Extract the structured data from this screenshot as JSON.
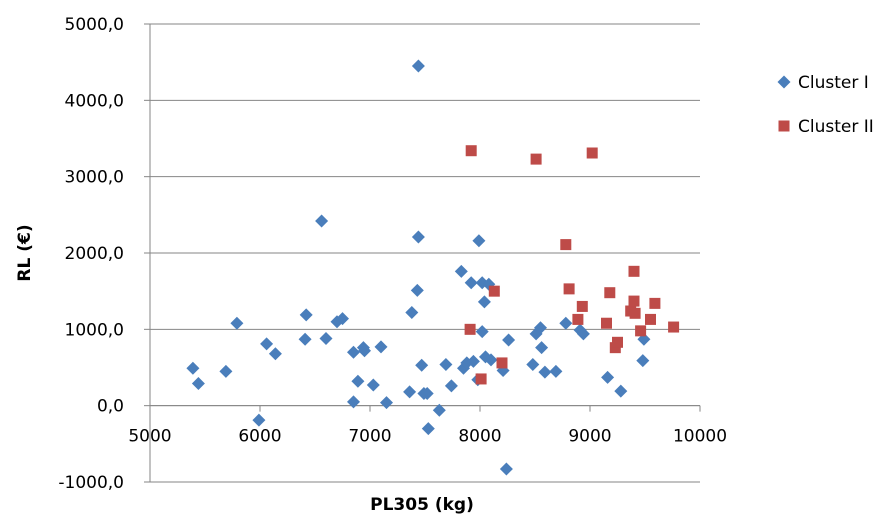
{
  "chart_data": {
    "type": "scatter",
    "xlabel": "PL305 (kg)",
    "ylabel": "RL (€)",
    "xlim": [
      5000,
      10000
    ],
    "ylim": [
      -1000,
      5000
    ],
    "x_ticks": [
      "5000",
      "6000",
      "7000",
      "8000",
      "9000",
      "10000"
    ],
    "y_ticks": [
      "-1000,0",
      "0,0",
      "1000,0",
      "2000,0",
      "3000,0",
      "4000,0",
      "5000,0"
    ],
    "grid": "horizontal",
    "legend_position": "right",
    "series": [
      {
        "name": "Cluster I",
        "color": "#4a7ebb",
        "marker": "diamond",
        "points": [
          [
            5390,
            490
          ],
          [
            5440,
            290
          ],
          [
            5690,
            450
          ],
          [
            5790,
            1080
          ],
          [
            5990,
            -190
          ],
          [
            6060,
            810
          ],
          [
            6140,
            680
          ],
          [
            6410,
            870
          ],
          [
            6420,
            1190
          ],
          [
            6560,
            2420
          ],
          [
            6600,
            880
          ],
          [
            6700,
            1100
          ],
          [
            6750,
            1140
          ],
          [
            6850,
            700
          ],
          [
            6850,
            50
          ],
          [
            6890,
            320
          ],
          [
            6940,
            760
          ],
          [
            6950,
            720
          ],
          [
            7030,
            270
          ],
          [
            7100,
            770
          ],
          [
            7150,
            40
          ],
          [
            7360,
            180
          ],
          [
            7380,
            1220
          ],
          [
            7430,
            1510
          ],
          [
            7440,
            2210
          ],
          [
            7440,
            4450
          ],
          [
            7470,
            530
          ],
          [
            7490,
            160
          ],
          [
            7520,
            160
          ],
          [
            7530,
            -300
          ],
          [
            7630,
            -60
          ],
          [
            7690,
            540
          ],
          [
            7740,
            260
          ],
          [
            7830,
            1760
          ],
          [
            7850,
            490
          ],
          [
            7880,
            560
          ],
          [
            7920,
            1610
          ],
          [
            7940,
            580
          ],
          [
            7980,
            340
          ],
          [
            7990,
            2160
          ],
          [
            8020,
            970
          ],
          [
            8020,
            1610
          ],
          [
            8040,
            1360
          ],
          [
            8050,
            640
          ],
          [
            8080,
            1590
          ],
          [
            8100,
            600
          ],
          [
            8210,
            460
          ],
          [
            8240,
            -830
          ],
          [
            8260,
            860
          ],
          [
            8480,
            540
          ],
          [
            8510,
            940
          ],
          [
            8550,
            1020
          ],
          [
            8560,
            760
          ],
          [
            8590,
            440
          ],
          [
            8690,
            450
          ],
          [
            8780,
            1080
          ],
          [
            8910,
            990
          ],
          [
            8940,
            940
          ],
          [
            9160,
            370
          ],
          [
            9280,
            190
          ],
          [
            9480,
            590
          ],
          [
            9490,
            870
          ]
        ]
      },
      {
        "name": "Cluster II",
        "color": "#be4b48",
        "marker": "square",
        "points": [
          [
            7910,
            1000
          ],
          [
            7920,
            3340
          ],
          [
            8010,
            350
          ],
          [
            8130,
            1500
          ],
          [
            8200,
            560
          ],
          [
            8510,
            3230
          ],
          [
            8780,
            2110
          ],
          [
            8810,
            1530
          ],
          [
            8890,
            1130
          ],
          [
            8930,
            1300
          ],
          [
            9020,
            3310
          ],
          [
            9150,
            1080
          ],
          [
            9180,
            1480
          ],
          [
            9230,
            760
          ],
          [
            9250,
            830
          ],
          [
            9370,
            1240
          ],
          [
            9400,
            1370
          ],
          [
            9400,
            1760
          ],
          [
            9410,
            1210
          ],
          [
            9460,
            980
          ],
          [
            9550,
            1130
          ],
          [
            9590,
            1340
          ],
          [
            9760,
            1030
          ]
        ]
      }
    ]
  }
}
